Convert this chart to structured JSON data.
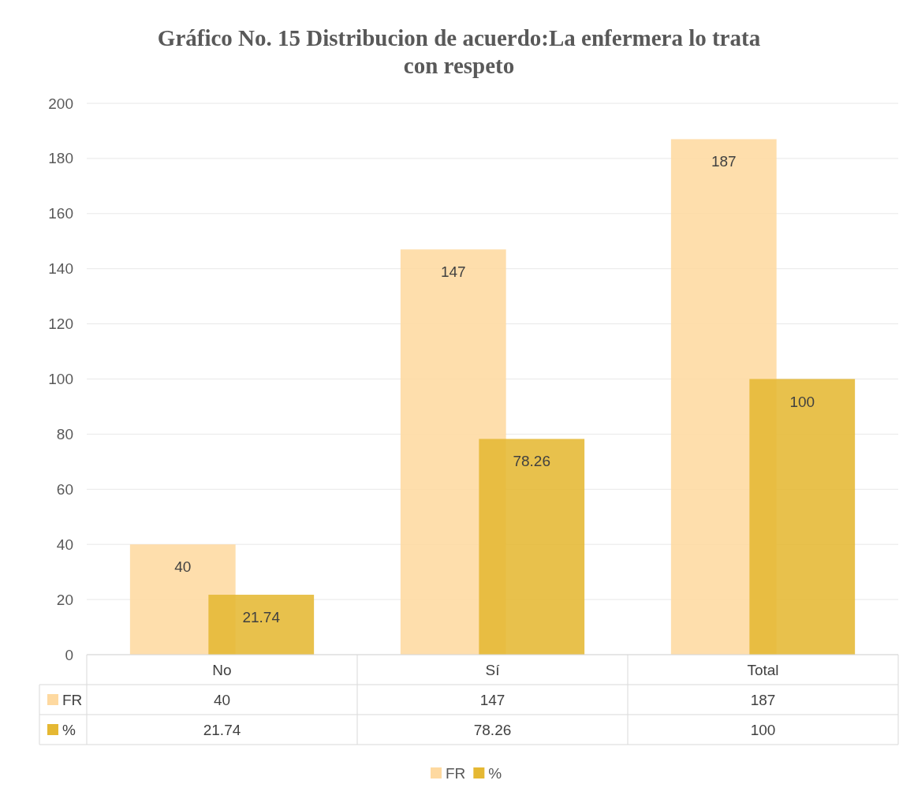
{
  "chart_data": {
    "type": "bar",
    "title": "Gráfico No. 15 Distribucion de acuerdo:La enfermera lo trata con respeto",
    "categories": [
      "No",
      "Sí",
      "Total"
    ],
    "series": [
      {
        "name": "FR",
        "color": "#fed9a0",
        "values": [
          40,
          147,
          187
        ]
      },
      {
        "name": "%",
        "color": "#e5b833",
        "values": [
          21.74,
          78.26,
          100
        ]
      }
    ],
    "ylim": [
      0,
      200
    ],
    "yticks": [
      0,
      20,
      40,
      60,
      80,
      100,
      120,
      140,
      160,
      180,
      200
    ],
    "grid": "y",
    "annotations": [
      "40",
      "147",
      "187",
      "21.74",
      "78.26",
      "100"
    ],
    "data_labels": true,
    "legend": "bottom"
  }
}
